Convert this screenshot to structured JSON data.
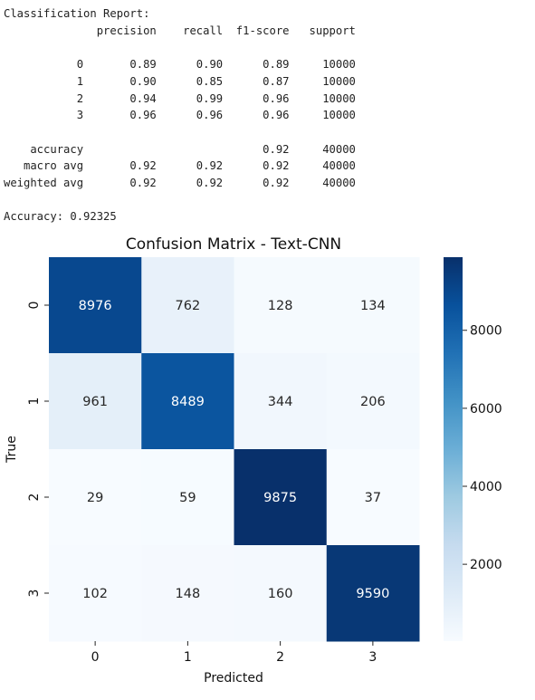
{
  "report": {
    "text": "Classification Report:\n              precision    recall  f1-score   support\n\n           0       0.89      0.90      0.89     10000\n           1       0.90      0.85      0.87     10000\n           2       0.94      0.99      0.96     10000\n           3       0.96      0.96      0.96     10000\n\n    accuracy                           0.92     40000\n   macro avg       0.92      0.92      0.92     40000\nweighted avg       0.92      0.92      0.92     40000\n\nAccuracy: 0.92325"
  },
  "chart_data": {
    "type": "heatmap",
    "title": "Confusion Matrix - Text-CNN",
    "xlabel": "Predicted",
    "ylabel": "True",
    "x_categories": [
      "0",
      "1",
      "2",
      "3"
    ],
    "y_categories": [
      "0",
      "1",
      "2",
      "3"
    ],
    "values": [
      [
        8976,
        762,
        128,
        134
      ],
      [
        961,
        8489,
        344,
        206
      ],
      [
        29,
        59,
        9875,
        37
      ],
      [
        102,
        148,
        160,
        9590
      ]
    ],
    "colormap": "Blues",
    "colorbar": {
      "min": 29,
      "max": 9875,
      "ticks": [
        2000,
        4000,
        6000,
        8000
      ]
    }
  }
}
